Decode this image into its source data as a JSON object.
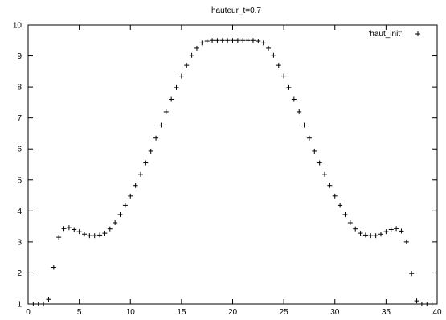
{
  "chart_data": {
    "type": "scatter",
    "title": "hauteur_t=0.7",
    "xlabel": "",
    "ylabel": "",
    "xlim": [
      0,
      40
    ],
    "ylim": [
      1,
      10
    ],
    "x_ticks": [
      0,
      5,
      10,
      15,
      20,
      25,
      30,
      35,
      40
    ],
    "y_ticks": [
      1,
      2,
      3,
      4,
      5,
      6,
      7,
      8,
      9,
      10
    ],
    "grid": false,
    "legend_position": "top-right",
    "series": [
      {
        "name": "'haut_init'",
        "marker": "+",
        "color": "#000000",
        "x": [
          0.5,
          1.0,
          1.5,
          2.0,
          2.5,
          3.0,
          3.5,
          4.0,
          4.5,
          5.0,
          5.5,
          6.0,
          6.5,
          7.0,
          7.5,
          8.0,
          8.5,
          9.0,
          9.5,
          10.0,
          10.5,
          11.0,
          11.5,
          12.0,
          12.5,
          13.0,
          13.5,
          14.0,
          14.5,
          15.0,
          15.5,
          16.0,
          16.5,
          17.0,
          17.5,
          18.0,
          18.5,
          19.0,
          19.5,
          20.0,
          20.5,
          21.0,
          21.5,
          22.0,
          22.5,
          23.0,
          23.5,
          24.0,
          24.5,
          25.0,
          25.5,
          26.0,
          26.5,
          27.0,
          27.5,
          28.0,
          28.5,
          29.0,
          29.5,
          30.0,
          30.5,
          31.0,
          31.5,
          32.0,
          32.5,
          33.0,
          33.5,
          34.0,
          34.5,
          35.0,
          35.5,
          36.0,
          36.5,
          37.0,
          37.5,
          38.0,
          38.5,
          39.0,
          39.5
        ],
        "y": [
          1.0,
          1.0,
          1.0,
          1.15,
          2.18,
          3.15,
          3.43,
          3.46,
          3.4,
          3.33,
          3.25,
          3.2,
          3.2,
          3.22,
          3.28,
          3.42,
          3.62,
          3.88,
          4.18,
          4.48,
          4.82,
          5.18,
          5.55,
          5.93,
          6.35,
          6.77,
          7.2,
          7.6,
          7.98,
          8.35,
          8.7,
          9.02,
          9.25,
          9.42,
          9.48,
          9.5,
          9.5,
          9.5,
          9.5,
          9.5,
          9.5,
          9.5,
          9.5,
          9.5,
          9.48,
          9.42,
          9.25,
          9.02,
          8.7,
          8.35,
          7.98,
          7.6,
          7.2,
          6.77,
          6.35,
          5.93,
          5.55,
          5.18,
          4.82,
          4.48,
          4.18,
          3.88,
          3.62,
          3.42,
          3.28,
          3.22,
          3.2,
          3.2,
          3.25,
          3.33,
          3.4,
          3.43,
          3.35,
          3.0,
          1.98,
          1.1,
          1.0,
          1.0,
          1.0
        ]
      }
    ]
  }
}
